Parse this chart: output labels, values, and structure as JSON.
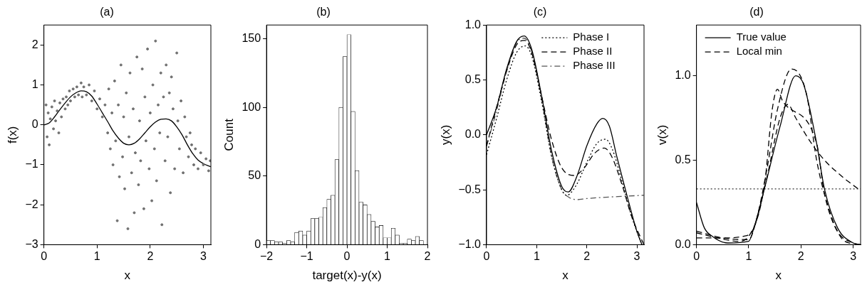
{
  "chart_data": [
    {
      "type": "scatter",
      "title": "(a)",
      "xlabel": "x",
      "ylabel": "f(x)",
      "xlim": [
        0,
        3.1416
      ],
      "xticks": [
        0,
        1,
        2,
        3
      ],
      "ylim": [
        -3,
        2.5
      ],
      "yticks": [
        {
          "value": -3,
          "label": "−3"
        },
        {
          "value": -2,
          "label": "−2"
        },
        {
          "value": -1,
          "label": "−1"
        },
        0,
        1,
        2
      ],
      "marker": "circle",
      "grid": false,
      "legend": false,
      "series": [
        {
          "type": "scatter",
          "color": "#707070",
          "x": [
            0.04,
            0.06,
            0.08,
            0.1,
            0.12,
            0.15,
            0.18,
            0.2,
            0.22,
            0.25,
            0.28,
            0.3,
            0.33,
            0.36,
            0.4,
            0.42,
            0.45,
            0.48,
            0.5,
            0.55,
            0.58,
            0.62,
            0.65,
            0.7,
            0.72,
            0.75,
            0.8,
            0.85,
            0.9,
            0.95,
            1.0,
            1.05,
            1.1,
            1.15,
            1.2,
            1.22,
            1.25,
            1.28,
            1.3,
            1.33,
            1.35,
            1.38,
            1.4,
            1.42,
            1.45,
            1.48,
            1.5,
            1.52,
            1.55,
            1.58,
            1.6,
            1.62,
            1.65,
            1.68,
            1.7,
            1.72,
            1.75,
            1.78,
            1.8,
            1.82,
            1.85,
            1.88,
            1.9,
            1.92,
            1.95,
            1.98,
            2.0,
            2.03,
            2.05,
            2.08,
            2.1,
            2.12,
            2.15,
            2.18,
            2.2,
            2.22,
            2.25,
            2.28,
            2.3,
            2.33,
            2.36,
            2.38,
            2.4,
            2.43,
            2.46,
            2.5,
            2.52,
            2.55,
            2.58,
            2.62,
            2.65,
            2.68,
            2.72,
            2.75,
            2.78,
            2.82,
            2.85,
            2.9,
            2.95,
            3.0,
            3.05,
            3.1,
            3.13
          ],
          "values": [
            0.5,
            -0.3,
            0.3,
            -0.5,
            0.15,
            0.45,
            -0.1,
            0.6,
            0.1,
            0.35,
            -0.2,
            0.55,
            0.2,
            0.65,
            0.4,
            0.7,
            0.5,
            0.85,
            0.6,
            0.9,
            0.7,
            0.95,
            0.75,
            1.05,
            0.7,
            0.95,
            0.75,
            1.0,
            0.6,
            0.85,
            0.4,
            0.65,
            0.2,
            0.5,
            -0.2,
            0.9,
            -0.6,
            0.3,
            -1.0,
            1.1,
            -0.4,
            -2.4,
            0.5,
            -1.3,
            1.5,
            -0.8,
            0.2,
            -1.6,
            0.8,
            -2.6,
            -0.3,
            1.3,
            -1.2,
            0.4,
            -2.2,
            -0.7,
            1.7,
            -1.5,
            0.1,
            -0.9,
            1.4,
            -2.1,
            0.7,
            -0.4,
            1.9,
            -1.1,
            0.3,
            -1.9,
            1.0,
            -0.6,
            2.1,
            -1.4,
            0.5,
            -0.2,
            1.3,
            -2.5,
            0.7,
            -0.9,
            1.5,
            -0.3,
            0.8,
            -1.7,
            1.2,
            0.4,
            -1.1,
            1.8,
            0.1,
            -0.6,
            0.6,
            -1.2,
            0.2,
            -0.3,
            -0.8,
            -0.2,
            -0.5,
            -1.0,
            -0.6,
            -1.1,
            -0.7,
            -1.0,
            -0.85,
            -1.15,
            -0.9
          ]
        },
        {
          "type": "line",
          "marker": "none",
          "color": "#000000",
          "x": [
            0,
            0.1,
            0.2,
            0.3,
            0.4,
            0.5,
            0.6,
            0.7,
            0.8,
            0.9,
            1.0,
            1.1,
            1.2,
            1.3,
            1.4,
            1.5,
            1.6,
            1.7,
            1.8,
            1.9,
            2.0,
            2.1,
            2.2,
            2.3,
            2.4,
            2.5,
            2.6,
            2.7,
            2.8,
            2.9,
            3.0,
            3.14
          ],
          "values": [
            0,
            0.05,
            0.2,
            0.38,
            0.55,
            0.7,
            0.8,
            0.85,
            0.83,
            0.72,
            0.52,
            0.3,
            0.08,
            -0.15,
            -0.33,
            -0.46,
            -0.5,
            -0.46,
            -0.35,
            -0.2,
            -0.05,
            0.07,
            0.14,
            0.15,
            0.1,
            -0.05,
            -0.25,
            -0.5,
            -0.72,
            -0.88,
            -0.97,
            -1.05
          ]
        }
      ]
    },
    {
      "type": "histogram",
      "title": "(b)",
      "xlabel": "target(x)-y(x)",
      "ylabel": "Count",
      "xlim": [
        -2,
        2
      ],
      "xticks": [
        {
          "value": -2,
          "label": "−2"
        },
        {
          "value": -1,
          "label": "−1"
        },
        0,
        1,
        2
      ],
      "ylim": [
        0,
        160
      ],
      "yticks": [
        0,
        50,
        100,
        150
      ],
      "grid": false,
      "legend": false,
      "color": "#ffffff",
      "bins": [
        -2,
        -1.9,
        -1.8,
        -1.7,
        -1.6,
        -1.5,
        -1.4,
        -1.3,
        -1.2,
        -1.1,
        -1.0,
        -0.9,
        -0.8,
        -0.7,
        -0.6,
        -0.5,
        -0.4,
        -0.3,
        -0.2,
        -0.1,
        0,
        0.1,
        0.2,
        0.3,
        0.4,
        0.5,
        0.6,
        0.7,
        0.8,
        0.9,
        1.0,
        1.1,
        1.2,
        1.3,
        1.4,
        1.5,
        1.6,
        1.7,
        1.8,
        1.9
      ],
      "values": [
        3,
        3,
        2,
        2,
        1,
        3,
        2,
        9,
        10,
        7,
        10,
        19,
        19,
        20,
        27,
        33,
        36,
        62,
        100,
        137,
        153,
        97,
        54,
        31,
        29,
        22,
        17,
        13,
        14,
        5,
        5,
        12,
        7,
        1,
        1,
        4,
        3,
        6,
        3
      ]
    },
    {
      "type": "line",
      "title": "(c)",
      "xlabel": "x",
      "ylabel": "y(x)",
      "xlim": [
        0,
        3.1416
      ],
      "xticks": [
        0,
        1,
        2,
        3
      ],
      "ylim": [
        -1,
        1
      ],
      "yticks": [
        {
          "value": -1,
          "label": "−1.0"
        },
        {
          "value": -0.5,
          "label": "−0.5"
        },
        {
          "value": 0,
          "label": "0.0"
        },
        {
          "value": 0.5,
          "label": "0.5"
        },
        {
          "value": 1,
          "label": "1.0"
        }
      ],
      "grid": false,
      "legend": "top right",
      "series": [
        {
          "color": "#000000",
          "line_style": "solid",
          "x": [
            0,
            0.2,
            0.4,
            0.6,
            0.75,
            0.9,
            1.1,
            1.3,
            1.5,
            1.63,
            1.8,
            2.0,
            2.2,
            2.32,
            2.45,
            2.6,
            2.8,
            3.0,
            3.1
          ],
          "values": [
            0,
            0.25,
            0.6,
            0.85,
            0.9,
            0.78,
            0.35,
            -0.15,
            -0.47,
            -0.52,
            -0.38,
            -0.1,
            0.1,
            0.15,
            0.08,
            -0.2,
            -0.55,
            -0.88,
            -1.0
          ]
        },
        {
          "name": "Phase I",
          "color": "#000000",
          "line_style": "dotted",
          "x": [
            0,
            0.2,
            0.4,
            0.6,
            0.77,
            0.9,
            1.1,
            1.3,
            1.5,
            1.6,
            1.8,
            2.0,
            2.2,
            2.37,
            2.5,
            2.7,
            2.9,
            3.1
          ],
          "values": [
            -0.18,
            0.15,
            0.5,
            0.75,
            0.81,
            0.72,
            0.3,
            -0.2,
            -0.5,
            -0.55,
            -0.45,
            -0.25,
            -0.08,
            -0.04,
            -0.12,
            -0.42,
            -0.75,
            -1.0
          ]
        },
        {
          "name": "Phase II",
          "color": "#000000",
          "line_style": "dashed",
          "x": [
            0,
            0.2,
            0.4,
            0.6,
            0.76,
            0.9,
            1.1,
            1.3,
            1.5,
            1.75,
            1.95,
            2.15,
            2.35,
            2.5,
            2.7,
            2.9,
            3.14
          ],
          "values": [
            -0.1,
            0.25,
            0.58,
            0.82,
            0.86,
            0.75,
            0.35,
            -0.05,
            -0.3,
            -0.37,
            -0.3,
            -0.17,
            -0.12,
            -0.2,
            -0.45,
            -0.75,
            -1.0
          ]
        },
        {
          "name": "Phase III",
          "color": "#555555",
          "line_style": "dashdot",
          "x": [
            0,
            0.2,
            0.4,
            0.6,
            0.75,
            0.9,
            1.1,
            1.3,
            1.5,
            1.65,
            1.8,
            2.0,
            2.3,
            2.7,
            3.14
          ],
          "values": [
            -0.1,
            0.22,
            0.58,
            0.84,
            0.88,
            0.76,
            0.32,
            -0.2,
            -0.5,
            -0.57,
            -0.59,
            -0.58,
            -0.57,
            -0.56,
            -0.55
          ]
        }
      ]
    },
    {
      "type": "line",
      "title": "(d)",
      "xlabel": "x",
      "ylabel": "v(x)",
      "xlim": [
        0,
        3.1416
      ],
      "xticks": [
        0,
        1,
        2,
        3
      ],
      "ylim": [
        0,
        1.3
      ],
      "yticks": [
        {
          "value": 0,
          "label": "0.0"
        },
        {
          "value": 0.5,
          "label": "0.5"
        },
        {
          "value": 1,
          "label": "1.0"
        }
      ],
      "grid": false,
      "legend": "top left",
      "ref_lines": [
        {
          "axis": "y",
          "value": 0.33,
          "color": "#000000",
          "line_style": "dotted"
        }
      ],
      "series": [
        {
          "name": "True value",
          "color": "#000000",
          "line_style": "solid",
          "x": [
            0,
            0.15,
            0.3,
            0.6,
            1.0,
            1.1,
            1.3,
            1.6,
            1.9,
            2.05,
            2.3,
            2.45,
            2.7,
            3.0,
            3.14
          ],
          "values": [
            0.25,
            0.1,
            0.05,
            0.01,
            0.02,
            0.1,
            0.33,
            0.7,
            1.0,
            0.95,
            0.6,
            0.33,
            0.1,
            0.01,
            0
          ]
        },
        {
          "name": "Local min",
          "color": "#000000",
          "line_style": "dashed",
          "x": [
            0,
            0.5,
            1.0,
            1.15,
            1.35,
            1.55,
            1.82,
            2.1,
            2.3,
            2.45,
            2.7,
            3.0,
            3.14
          ],
          "values": [
            0.08,
            0.04,
            0.03,
            0.15,
            0.45,
            0.8,
            1.04,
            0.9,
            0.5,
            0.3,
            0.08,
            0.01,
            0
          ]
        },
        {
          "color": "#000000",
          "line_style": "dashed",
          "x": [
            0,
            0.4,
            0.8,
            1.0,
            1.3,
            1.45,
            1.55,
            1.65,
            2.3,
            2.45,
            2.75,
            3.0
          ],
          "values": [
            0.07,
            0.04,
            0.02,
            0.05,
            0.35,
            0.8,
            0.92,
            0.85,
            0.6,
            0.3,
            0.05,
            0
          ]
        },
        {
          "color": "#000000",
          "line_style": "dashed",
          "x": [
            0,
            0.5,
            0.9,
            1.1,
            1.35,
            1.6,
            1.75,
            1.9,
            2.2,
            2.45,
            2.8,
            3.14
          ],
          "values": [
            0.04,
            0.04,
            0.05,
            0.1,
            0.4,
            0.75,
            0.83,
            0.75,
            0.6,
            0.5,
            0.4,
            0.32
          ]
        }
      ]
    }
  ]
}
